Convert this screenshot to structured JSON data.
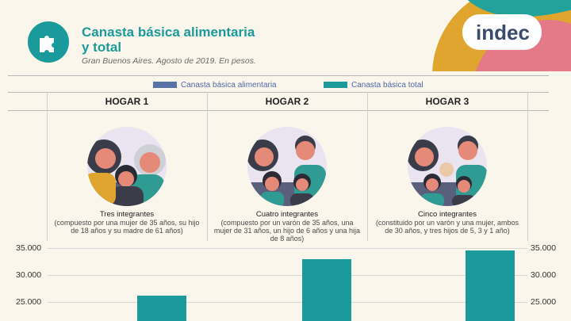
{
  "header": {
    "title": "Canasta básica alimentaria y total",
    "subtitle": "Gran Buenos Aires. Agosto de 2019. En pesos.",
    "logo": "indec"
  },
  "legend": {
    "alimentaria": "Canasta básica alimentaria",
    "total": "Canasta básica total"
  },
  "households": [
    {
      "name": "HOGAR 1",
      "members_title": "Tres integrantes",
      "members_detail": "(compuesto por una mujer de 35 años, su hijo de 18 años y su madre de 61 años)"
    },
    {
      "name": "HOGAR 2",
      "members_title": "Cuatro integrantes",
      "members_detail": "(compuesto por un varón de 35 años, una mujer de 31 años, un hijo de 6 años y una hija de 8 años)"
    },
    {
      "name": "HOGAR 3",
      "members_title": "Cinco integrantes",
      "members_detail": "(constituido por un varón y una mujer, ambos de 30 años, y tres hijos de 5, 3 y 1 año)"
    }
  ],
  "colors": {
    "teal": "#1a9a9a",
    "blue": "#5b72a8",
    "background": "#fbf6ec"
  },
  "chart_data": {
    "type": "bar",
    "categories": [
      "HOGAR 1",
      "HOGAR 2",
      "HOGAR 3"
    ],
    "series": [
      {
        "name": "Canasta básica total",
        "values": [
          26200,
          33000,
          34600
        ]
      }
    ],
    "yticks": [
      "35.000",
      "30.000",
      "25.000"
    ],
    "ylim_visible": [
      22000,
      36000
    ],
    "legend_position": "top",
    "grid": true
  }
}
